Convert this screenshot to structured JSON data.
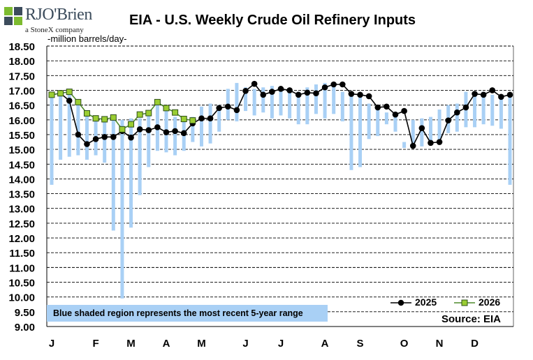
{
  "logo": {
    "name": "RJO'Brien",
    "sub": "a StoneX company"
  },
  "note": "Blue shaded region represents the most  recent 5-year range",
  "source": "Source: EIA",
  "colors": {
    "range": "#a9d0f5",
    "line2025": "#000000",
    "line2026": "#4e8a2c",
    "marker2026": "#9acd32"
  },
  "chart_data": {
    "type": "line",
    "title": "EIA - U.S. Weekly Crude Oil Refinery Inputs",
    "ylabel": "-million barrels/day-",
    "xlabel": "",
    "ylim": [
      9.0,
      18.5
    ],
    "yticks": [
      "9.00",
      "9.50",
      "10.00",
      "10.50",
      "11.00",
      "11.50",
      "12.00",
      "12.50",
      "13.00",
      "13.50",
      "14.00",
      "14.50",
      "15.00",
      "15.50",
      "16.00",
      "16.50",
      "17.00",
      "17.50",
      "18.00",
      "18.50"
    ],
    "month_labels": [
      "J",
      "F",
      "M",
      "A",
      "M",
      "J",
      "J",
      "A",
      "S",
      "O",
      "N",
      "D"
    ],
    "month_label_weeks": [
      1,
      6,
      10,
      14,
      18,
      23,
      27,
      32,
      36,
      41,
      45,
      49
    ],
    "grid": true,
    "legend_position": "bottom-right",
    "weeks": [
      1,
      2,
      3,
      4,
      5,
      6,
      7,
      8,
      9,
      10,
      11,
      12,
      13,
      14,
      15,
      16,
      17,
      18,
      19,
      20,
      21,
      22,
      23,
      24,
      25,
      26,
      27,
      28,
      29,
      30,
      31,
      32,
      33,
      34,
      35,
      36,
      37,
      38,
      39,
      40,
      41,
      42,
      43,
      44,
      45,
      46,
      47,
      48,
      49,
      50,
      51,
      52,
      53
    ],
    "range_5yr": {
      "low": [
        13.8,
        14.65,
        14.75,
        14.8,
        14.65,
        14.8,
        14.55,
        12.25,
        9.95,
        12.35,
        13.45,
        14.4,
        14.95,
        14.9,
        14.8,
        14.95,
        15.25,
        15.1,
        15.2,
        15.6,
        16.0,
        15.95,
        16.3,
        16.15,
        16.25,
        16.05,
        16.15,
        16.05,
        15.85,
        15.85,
        16.2,
        16.05,
        16.2,
        15.95,
        14.3,
        14.4,
        15.35,
        15.45,
        15.85,
        15.6,
        15.05,
        15.05,
        15.1,
        15.15,
        15.3,
        15.55,
        15.6,
        15.75,
        15.75,
        15.85,
        15.8,
        15.7,
        13.8
      ],
      "high": [
        16.95,
        17.0,
        17.0,
        16.7,
        16.3,
        16.15,
        16.05,
        16.05,
        16.0,
        16.05,
        16.05,
        16.25,
        16.55,
        16.45,
        16.1,
        16.05,
        16.1,
        16.45,
        16.55,
        16.5,
        17.05,
        17.25,
        17.1,
        17.05,
        17.1,
        17.15,
        17.0,
        16.95,
        16.95,
        17.1,
        17.2,
        17.25,
        17.2,
        16.95,
        16.9,
        16.8,
        16.55,
        16.45,
        16.25,
        16.25,
        15.25,
        16.0,
        16.05,
        16.1,
        16.35,
        16.5,
        16.55,
        16.95,
        16.95,
        16.95,
        16.85,
        16.85,
        16.85
      ]
    },
    "series": [
      {
        "name": "2025",
        "values": [
          16.85,
          16.9,
          16.65,
          15.5,
          15.18,
          15.35,
          15.42,
          15.42,
          15.62,
          15.4,
          15.68,
          15.65,
          15.75,
          15.58,
          15.62,
          15.55,
          15.88,
          16.05,
          16.05,
          16.4,
          16.45,
          16.33,
          16.98,
          17.22,
          16.85,
          16.95,
          17.05,
          17.0,
          16.85,
          16.92,
          16.9,
          17.1,
          17.2,
          17.2,
          16.88,
          16.85,
          16.8,
          16.42,
          16.45,
          16.18,
          16.3,
          15.12,
          15.72,
          15.22,
          15.25,
          15.98,
          16.25,
          16.42,
          16.88,
          16.85,
          17.0,
          16.78,
          16.85
        ]
      },
      {
        "name": "2026",
        "values": [
          16.85,
          16.9,
          16.95,
          16.6,
          16.22,
          16.05,
          16.02,
          16.08,
          15.68,
          15.85,
          16.18,
          16.23,
          16.6,
          16.4,
          16.25,
          16.03,
          15.98
        ]
      }
    ]
  }
}
